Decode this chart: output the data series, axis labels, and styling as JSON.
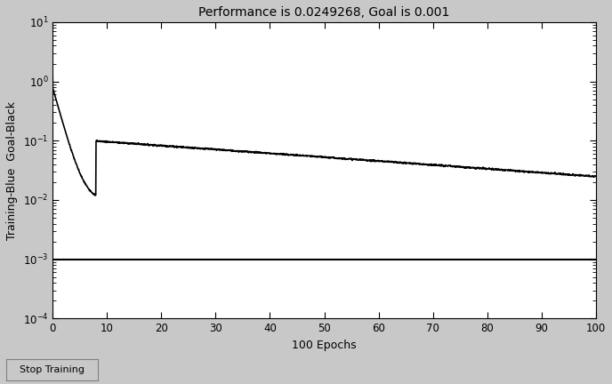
{
  "title": "Performance is 0.0249268, Goal is 0.001",
  "xlabel": "100 Epochs",
  "ylabel": "Training-Blue  Goal-Black",
  "xlim": [
    0,
    100
  ],
  "ylim_log": [
    -4,
    1
  ],
  "goal_value": 0.001,
  "final_performance": 0.0249268,
  "start_value": 1.5,
  "mid_value": 0.19,
  "mid_epoch": 8,
  "background_color": "#c8c8c8",
  "plot_bg_color": "#ffffff",
  "training_color": "#000000",
  "goal_color": "#000000",
  "stop_training_text": "Stop Training",
  "title_fontsize": 10,
  "label_fontsize": 9,
  "tick_fontsize": 8.5
}
